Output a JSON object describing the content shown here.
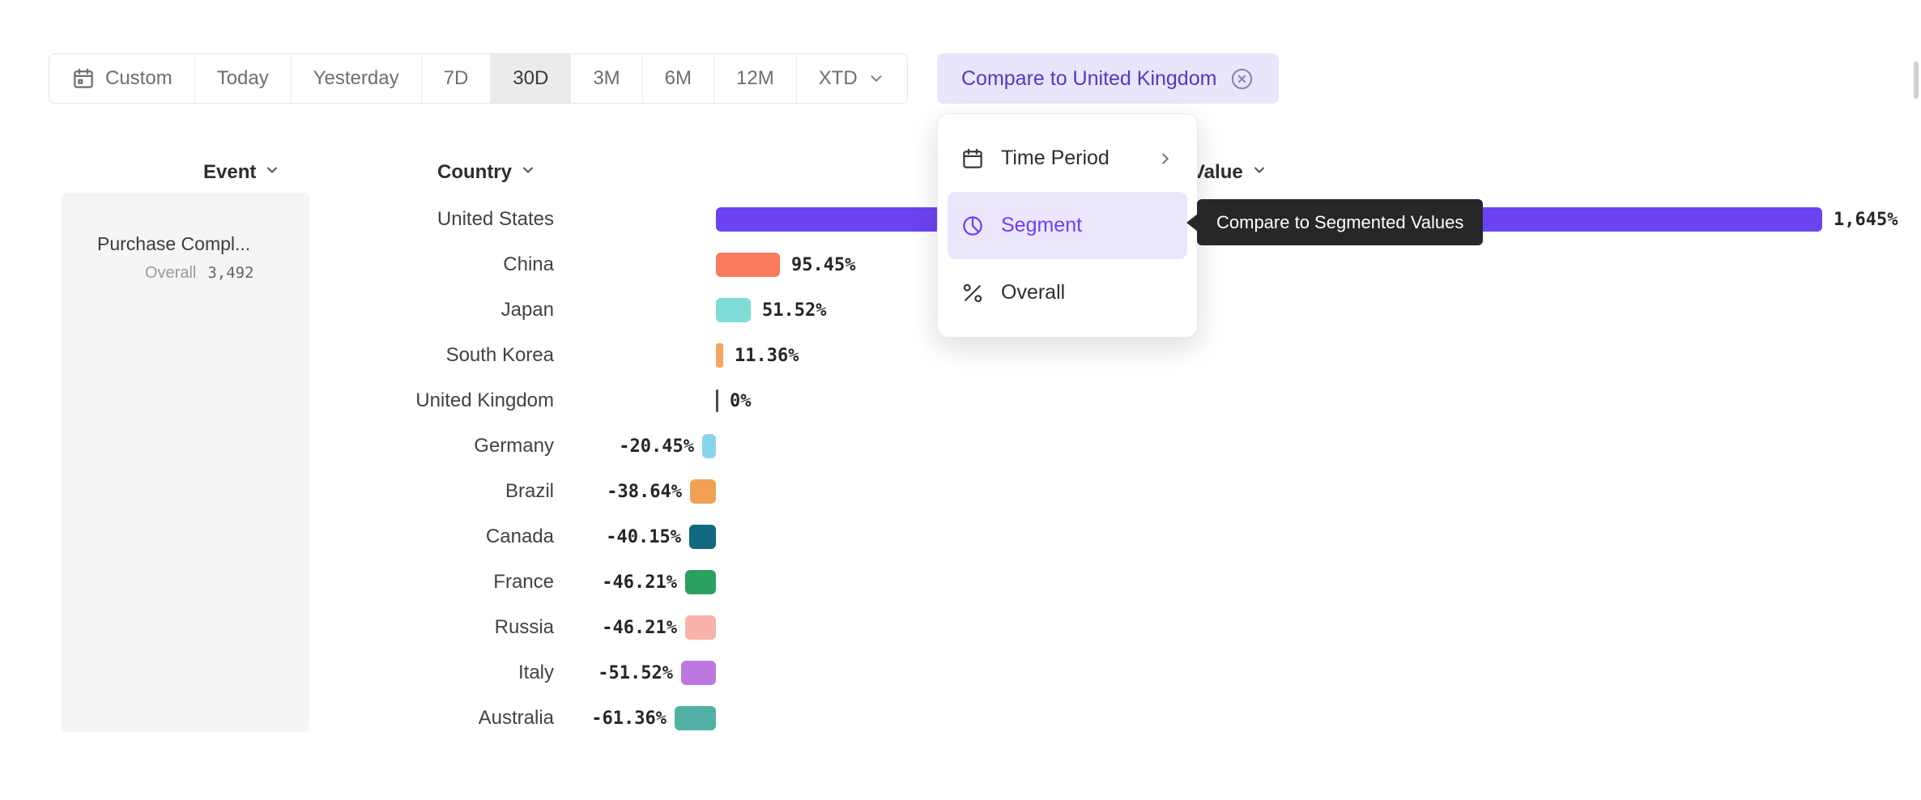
{
  "toolbar": {
    "buttons": [
      {
        "label": "Custom",
        "icon": "calendar-icon"
      },
      {
        "label": "Today"
      },
      {
        "label": "Yesterday"
      },
      {
        "label": "7D"
      },
      {
        "label": "30D",
        "selected": true
      },
      {
        "label": "3M"
      },
      {
        "label": "6M"
      },
      {
        "label": "12M"
      },
      {
        "label": "XTD",
        "icon_right": "chevron-down-icon"
      }
    ],
    "compare_button_label": "Compare to United Kingdom",
    "compare_button_icon": "remove-circle-icon"
  },
  "dropdown_menu": {
    "items": [
      {
        "label": "Time Period",
        "icon": "calendar-icon",
        "trailing_icon": "chevron-right-icon",
        "selected": false
      },
      {
        "label": "Segment",
        "icon": "segment-icon",
        "selected": true
      },
      {
        "label": "Overall",
        "icon": "percent-icon",
        "selected": false
      }
    ]
  },
  "tooltip": {
    "text": "Compare to Segmented Values"
  },
  "columns": {
    "event": "Event",
    "country": "Country",
    "value": "Value"
  },
  "event_panel": {
    "name": "Purchase Compl...",
    "overall_label": "Overall",
    "overall_value": "3,492"
  },
  "chart_data": {
    "type": "bar",
    "orientation": "horizontal",
    "categories": [
      "United States",
      "China",
      "Japan",
      "South Korea",
      "United Kingdom",
      "Germany",
      "Brazil",
      "Canada",
      "France",
      "Russia",
      "Italy",
      "Australia"
    ],
    "values": [
      1645,
      95.45,
      51.52,
      11.36,
      0,
      -20.45,
      -38.64,
      -40.15,
      -46.21,
      -46.21,
      -51.52,
      -61.36
    ],
    "value_labels": [
      "1,645%",
      "95.45%",
      "51.52%",
      "11.36%",
      "0%",
      "-20.45%",
      "-38.64%",
      "-40.15%",
      "-46.21%",
      "-46.21%",
      "-51.52%",
      "-61.36%"
    ],
    "colors": [
      "#6c43f0",
      "#f87b5c",
      "#7edcd6",
      "#f9a45f",
      "#4a4a4a",
      "#87d4ed",
      "#f2a154",
      "#11697f",
      "#2ca05e",
      "#f9b3aa",
      "#bb79e0",
      "#52b1a4"
    ],
    "unit": "%",
    "baseline": 0,
    "xlim": [
      -70,
      1700
    ],
    "grid": false,
    "legend": "none"
  },
  "colors": {
    "accent_purple": "#6a3ff5",
    "compare_button_bg": "#e9e6fb",
    "selected_menu_bg": "#ece6fd",
    "tooltip_bg": "#27272a",
    "selected_range_bg": "#ebebeb",
    "panel_bg": "#f5f5f6"
  }
}
